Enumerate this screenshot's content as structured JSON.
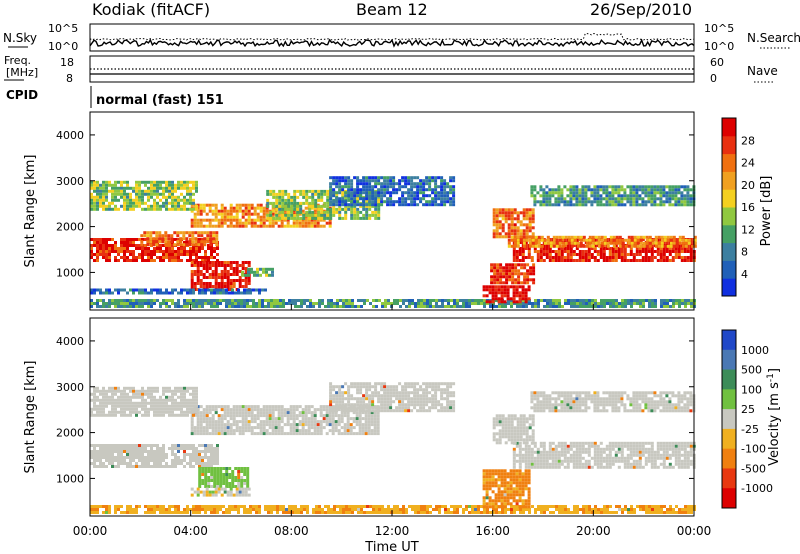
{
  "header": {
    "station": "Kodiak (fitACF)",
    "beam": "Beam 12",
    "date": "26/Sep/2010"
  },
  "noise_panel": {
    "left_label": "N.Sky",
    "right_label": "N.Search",
    "y_ticks": [
      "10^5",
      "10^0"
    ]
  },
  "freq_panel": {
    "left_label_1": "Freq.",
    "left_label_2": "[MHz]",
    "left_ticks": [
      "18",
      "8"
    ],
    "right_label": "Nave",
    "right_ticks": [
      "60",
      "0"
    ]
  },
  "cpid": {
    "label": "CPID",
    "value": "normal (fast) 151"
  },
  "colors": {
    "power_scale": [
      "#1030e0",
      "#2060b8",
      "#3c7fa0",
      "#45a064",
      "#90c840",
      "#f4d020",
      "#f0a020",
      "#f07010",
      "#e83010",
      "#dd0000"
    ],
    "velocity_scale": [
      "#2048c8",
      "#4a78b4",
      "#3c8c58",
      "#70c040",
      "#c8c8c0",
      "#f0b020",
      "#f08010",
      "#e83810",
      "#dd0000"
    ]
  },
  "chart_data": [
    {
      "type": "heatmap",
      "name": "power",
      "ylabel": "Slant Range [km]",
      "ylim": [
        180,
        4500
      ],
      "y_ticks": [
        1000,
        2000,
        3000,
        4000
      ],
      "colorbar_label": "Power [dB]",
      "colorbar_ticks": [
        "4",
        "8",
        "12",
        "16",
        "20",
        "24",
        "28"
      ],
      "colorbar_range": [
        0,
        32
      ],
      "bands": [
        {
          "t": [
            0.0,
            5.1
          ],
          "r": [
            1250,
            1750
          ],
          "v": 29
        },
        {
          "t": [
            2.0,
            5.0
          ],
          "r": [
            1620,
            1900
          ],
          "v": 24
        },
        {
          "t": [
            4.0,
            6.3
          ],
          "r": [
            650,
            1250
          ],
          "v": 30
        },
        {
          "t": [
            6.0,
            7.3
          ],
          "r": [
            950,
            1100
          ],
          "v": 12
        },
        {
          "t": [
            4.0,
            9.5
          ],
          "r": [
            2000,
            2500
          ],
          "v": 22
        },
        {
          "t": [
            7.0,
            11.5
          ],
          "r": [
            2200,
            2800
          ],
          "v": 14
        },
        {
          "t": [
            0.0,
            4.2
          ],
          "r": [
            2400,
            3000
          ],
          "v": 14
        },
        {
          "t": [
            9.5,
            14.5
          ],
          "r": [
            2500,
            3100
          ],
          "v": 6
        },
        {
          "t": [
            0.0,
            7.0
          ],
          "r": [
            520,
            650
          ],
          "v": 6
        },
        {
          "t": [
            0.0,
            24.0
          ],
          "r": [
            230,
            420
          ],
          "v": 10
        },
        {
          "t": [
            15.6,
            17.4
          ],
          "r": [
            380,
            720
          ],
          "v": 31
        },
        {
          "t": [
            15.9,
            17.6
          ],
          "r": [
            750,
            1200
          ],
          "v": 28
        },
        {
          "t": [
            16.8,
            24.0
          ],
          "r": [
            1250,
            1750
          ],
          "v": 29
        },
        {
          "t": [
            16.6,
            24.0
          ],
          "r": [
            1600,
            1800
          ],
          "v": 22
        },
        {
          "t": [
            16.0,
            17.6
          ],
          "r": [
            1800,
            2400
          ],
          "v": 24
        },
        {
          "t": [
            17.5,
            24.0
          ],
          "r": [
            2500,
            2900
          ],
          "v": 10
        }
      ]
    },
    {
      "type": "heatmap",
      "name": "velocity",
      "ylabel": "Slant Range [km]",
      "ylim": [
        180,
        4500
      ],
      "y_ticks": [
        1000,
        2000,
        3000,
        4000
      ],
      "xlabel": "Time UT",
      "x_ticks": [
        "00:00",
        "04:00",
        "08:00",
        "12:00",
        "16:00",
        "20:00",
        "00:00"
      ],
      "xlim": [
        0,
        24
      ],
      "colorbar_label": "Velocity [m s",
      "colorbar_unit_exponent": "-1",
      "colorbar_unit_close": "]",
      "colorbar_ticks": [
        "1000",
        "500",
        "100",
        "25",
        "-25",
        "-100",
        "-500",
        "-1000"
      ],
      "bands": [
        {
          "t": [
            0.0,
            5.1
          ],
          "r": [
            1250,
            1750
          ],
          "v": 0
        },
        {
          "t": [
            4.3,
            6.3
          ],
          "r": [
            800,
            1250
          ],
          "v": 60
        },
        {
          "t": [
            4.0,
            6.3
          ],
          "r": [
            650,
            800
          ],
          "v": -10
        },
        {
          "t": [
            4.0,
            11.5
          ],
          "r": [
            2000,
            2600
          ],
          "v": 0
        },
        {
          "t": [
            0.0,
            4.2
          ],
          "r": [
            2400,
            3000
          ],
          "v": 0
        },
        {
          "t": [
            9.5,
            14.5
          ],
          "r": [
            2500,
            3100
          ],
          "v": 0
        },
        {
          "t": [
            0.0,
            24.0
          ],
          "r": [
            230,
            420
          ],
          "v": -80
        },
        {
          "t": [
            15.6,
            17.4
          ],
          "r": [
            380,
            1200
          ],
          "v": -120
        },
        {
          "t": [
            16.8,
            24.0
          ],
          "r": [
            1250,
            1800
          ],
          "v": 0
        },
        {
          "t": [
            16.0,
            17.6
          ],
          "r": [
            1800,
            2400
          ],
          "v": 0
        },
        {
          "t": [
            17.5,
            24.0
          ],
          "r": [
            2500,
            2900
          ],
          "v": 0
        }
      ]
    }
  ]
}
